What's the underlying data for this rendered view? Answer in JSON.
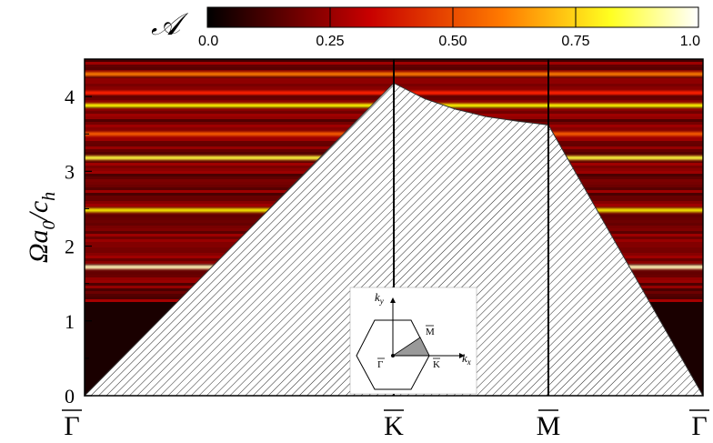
{
  "chart_data": {
    "type": "heatmap",
    "colorbar": {
      "title": "𝒜",
      "colormap": "hot",
      "range": [
        0.0,
        1.0
      ],
      "tick_labels": [
        "0.0",
        "0.25",
        "0.50",
        "0.75",
        "1.0"
      ],
      "tick_values": [
        0.0,
        0.25,
        0.5,
        0.75,
        1.0
      ]
    },
    "yaxis": {
      "label_main": "Ωa",
      "label_sub1": "0",
      "label_mid": "/c",
      "label_sub2": "h",
      "range": [
        0,
        4.5
      ],
      "tick_labels": [
        "0",
        "1",
        "2",
        "3",
        "4"
      ],
      "tick_values": [
        0,
        1,
        2,
        3,
        4
      ]
    },
    "xaxis": {
      "range": [
        0,
        2.0
      ],
      "symmetry_points": [
        {
          "label": "Γ",
          "position": 0.0
        },
        {
          "label": "K",
          "position": 1.0
        },
        {
          "label": "M",
          "position": 1.5
        },
        {
          "label": "Γ",
          "position": 2.0
        }
      ]
    },
    "sound_cone": {
      "x": [
        0.0,
        1.0,
        1.1,
        1.2,
        1.3,
        1.4,
        1.5,
        2.0
      ],
      "y": [
        0.0,
        4.18,
        3.97,
        3.83,
        3.73,
        3.67,
        3.62,
        0.0
      ]
    },
    "bands": [
      {
        "y": 1.72,
        "intensity": 0.95
      },
      {
        "y": 2.48,
        "intensity": 0.78
      },
      {
        "y": 3.18,
        "intensity": 0.85
      },
      {
        "y": 3.5,
        "intensity": 0.55
      },
      {
        "y": 3.88,
        "intensity": 0.8
      },
      {
        "y": 4.05,
        "intensity": 0.45
      },
      {
        "y": 4.3,
        "intensity": 0.6
      }
    ],
    "inset": {
      "kx_label": "k",
      "kx_sub": "x",
      "ky_label": "k",
      "ky_sub": "y",
      "points": [
        "Γ",
        "K",
        "M"
      ]
    }
  }
}
